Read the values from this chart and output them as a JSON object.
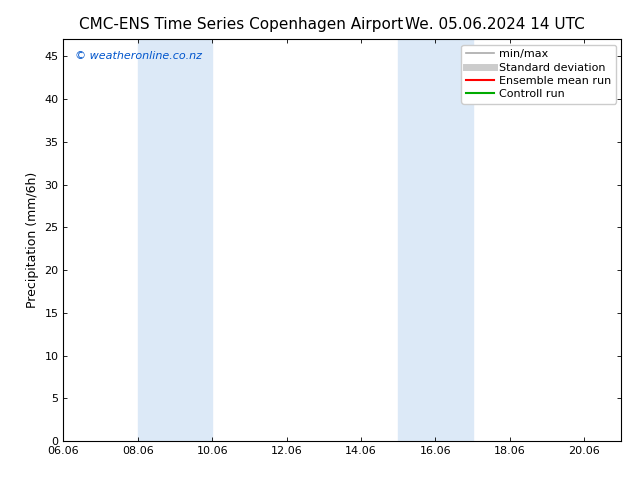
{
  "title_left": "CMC-ENS Time Series Copenhagen Airport",
  "title_right": "We. 05.06.2024 14 UTC",
  "ylabel": "Precipitation (mm/6h)",
  "xlim": [
    6.0,
    21.0
  ],
  "ylim": [
    0,
    47
  ],
  "yticks": [
    0,
    5,
    10,
    15,
    20,
    25,
    30,
    35,
    40,
    45
  ],
  "xtick_labels": [
    "06.06",
    "08.06",
    "10.06",
    "12.06",
    "14.06",
    "16.06",
    "18.06",
    "20.06"
  ],
  "xtick_positions": [
    6,
    8,
    10,
    12,
    14,
    16,
    18,
    20
  ],
  "shaded_bands": [
    {
      "x_start": 8.0,
      "x_end": 10.0
    },
    {
      "x_start": 15.0,
      "x_end": 17.0
    }
  ],
  "shaded_color": "#dce9f7",
  "background_color": "#ffffff",
  "plot_bg_color": "#ffffff",
  "watermark_text": "© weatheronline.co.nz",
  "watermark_color": "#0055cc",
  "legend_entries": [
    {
      "label": "min/max",
      "color": "#aaaaaa",
      "lw": 1.2,
      "style": "solid"
    },
    {
      "label": "Standard deviation",
      "color": "#cccccc",
      "lw": 5,
      "style": "solid"
    },
    {
      "label": "Ensemble mean run",
      "color": "#ff0000",
      "lw": 1.5,
      "style": "solid"
    },
    {
      "label": "Controll run",
      "color": "#00aa00",
      "lw": 1.5,
      "style": "solid"
    }
  ],
  "title_fontsize": 11,
  "axis_label_fontsize": 9,
  "tick_fontsize": 8,
  "legend_fontsize": 8,
  "watermark_fontsize": 8
}
